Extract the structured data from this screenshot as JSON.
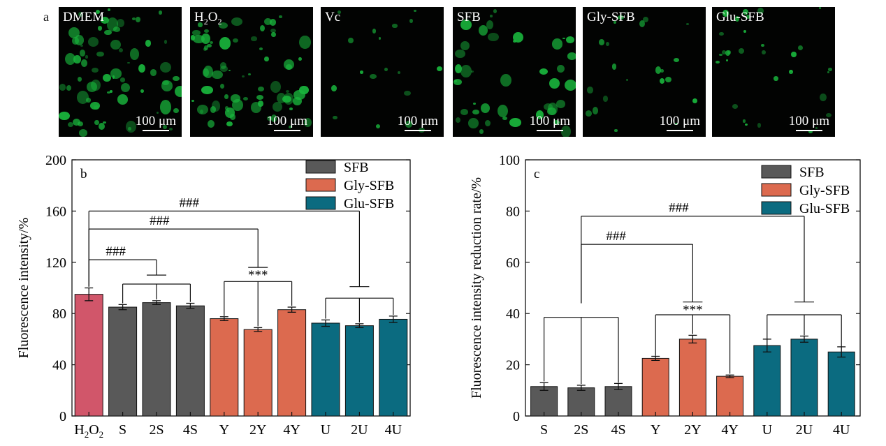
{
  "panel_a": {
    "letter": "a",
    "images": [
      {
        "label": "DMEM",
        "scale": "100 μm",
        "density": 1.0
      },
      {
        "label": "H2O2",
        "scale": "100 μm",
        "density": 1.0
      },
      {
        "label": "Vc",
        "scale": "100 μm",
        "density": 0.25
      },
      {
        "label": "SFB",
        "scale": "100 μm",
        "density": 0.6
      },
      {
        "label": "Gly-SFB",
        "scale": "100 μm",
        "density": 0.3
      },
      {
        "label": "Glu-SFB",
        "scale": "100 μm",
        "density": 0.45
      }
    ]
  },
  "colors": {
    "h2o2": "#d1566a",
    "sfb": "#595959",
    "gly": "#dc6a4f",
    "glu": "#0b6b80"
  },
  "chart_data": [
    {
      "type": "bar",
      "panel": "b",
      "ylabel": "Fluorescence intensity/%",
      "ylim": [
        0,
        200
      ],
      "yticks": [
        0,
        40,
        80,
        120,
        160,
        200
      ],
      "categories": [
        "H2O2",
        "S",
        "2S",
        "4S",
        "Y",
        "2Y",
        "4Y",
        "U",
        "2U",
        "4U"
      ],
      "values": [
        95,
        85,
        88.5,
        86,
        76,
        67.5,
        83,
        72.5,
        70.5,
        75.5
      ],
      "errors": [
        5,
        2,
        1.5,
        2,
        1.5,
        1.5,
        2,
        2.5,
        1.5,
        2.5
      ],
      "groups": [
        "h2o2",
        "sfb",
        "sfb",
        "sfb",
        "gly",
        "gly",
        "gly",
        "glu",
        "glu",
        "glu"
      ],
      "legend": [
        "SFB",
        "Gly-SFB",
        "Glu-SFB"
      ],
      "legend_position": "top-right",
      "annotations": [
        "###",
        "###",
        "###",
        "***"
      ]
    },
    {
      "type": "bar",
      "panel": "c",
      "ylabel": "Fluorescence intensity reduction rate/%",
      "ylim": [
        0,
        100
      ],
      "yticks": [
        0,
        20,
        40,
        60,
        80,
        100
      ],
      "categories": [
        "S",
        "2S",
        "4S",
        "Y",
        "2Y",
        "4Y",
        "U",
        "2U",
        "4U"
      ],
      "values": [
        11.5,
        11,
        11.5,
        22.5,
        30,
        15.5,
        27.5,
        30,
        25
      ],
      "errors": [
        1.5,
        1,
        1.2,
        0.8,
        1.5,
        0.5,
        2.5,
        1.2,
        2
      ],
      "groups": [
        "sfb",
        "sfb",
        "sfb",
        "gly",
        "gly",
        "gly",
        "glu",
        "glu",
        "glu"
      ],
      "legend": [
        "SFB",
        "Gly-SFB",
        "Glu-SFB"
      ],
      "legend_position": "top-right",
      "annotations": [
        "###",
        "###",
        "***"
      ]
    }
  ]
}
